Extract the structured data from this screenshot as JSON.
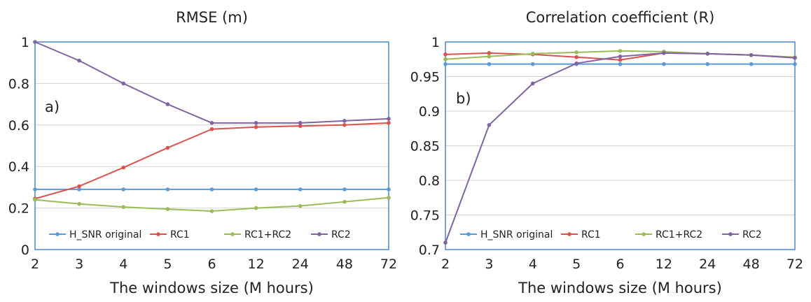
{
  "chart_data": [
    {
      "type": "line",
      "title": "RMSE (m)",
      "panel_label": "a)",
      "xlabel": "The windows size (M hours)",
      "ylabel": "",
      "categories": [
        "2",
        "3",
        "4",
        "5",
        "6",
        "12",
        "24",
        "48",
        "72"
      ],
      "yticks": [
        "0",
        "0.2",
        "0.4",
        "0.6",
        "0.8",
        "1"
      ],
      "ylim": [
        0,
        1
      ],
      "grid": true,
      "legend_position": "bottom-inside",
      "series": [
        {
          "name": "H_SNR original",
          "color": "#5b9bd5",
          "values": [
            0.29,
            0.29,
            0.29,
            0.29,
            0.29,
            0.29,
            0.29,
            0.29,
            0.29
          ]
        },
        {
          "name": "RC1",
          "color": "#d9534f",
          "values": [
            0.245,
            0.305,
            0.395,
            0.49,
            0.58,
            0.59,
            0.595,
            0.6,
            0.61
          ]
        },
        {
          "name": "RC1+RC2",
          "color": "#9bbb59",
          "values": [
            0.24,
            0.22,
            0.205,
            0.195,
            0.185,
            0.2,
            0.21,
            0.23,
            0.25
          ]
        },
        {
          "name": "RC2",
          "color": "#8064a2",
          "values": [
            1.0,
            0.91,
            0.8,
            0.7,
            0.61,
            0.61,
            0.61,
            0.62,
            0.63
          ]
        }
      ]
    },
    {
      "type": "line",
      "title": "Correlation coefficient (R)",
      "panel_label": "b)",
      "xlabel": "The windows size (M hours)",
      "ylabel": "",
      "categories": [
        "2",
        "3",
        "4",
        "5",
        "6",
        "12",
        "24",
        "48",
        "72"
      ],
      "yticks": [
        "0.7",
        "0.75",
        "0.8",
        "0.85",
        "0.9",
        "0.95",
        "1"
      ],
      "ylim": [
        0.7,
        1
      ],
      "grid": true,
      "legend_position": "bottom-inside",
      "series": [
        {
          "name": "H_SNR original",
          "color": "#5b9bd5",
          "values": [
            0.968,
            0.968,
            0.968,
            0.968,
            0.968,
            0.968,
            0.968,
            0.968,
            0.968
          ]
        },
        {
          "name": "RC1",
          "color": "#d9534f",
          "values": [
            0.982,
            0.984,
            0.982,
            0.978,
            0.974,
            0.984,
            0.983,
            0.981,
            0.977
          ]
        },
        {
          "name": "RC1+RC2",
          "color": "#9bbb59",
          "values": [
            0.975,
            0.979,
            0.983,
            0.985,
            0.987,
            0.986,
            0.983,
            0.981,
            0.978
          ]
        },
        {
          "name": "RC2",
          "color": "#8064a2",
          "values": [
            0.71,
            0.88,
            0.94,
            0.969,
            0.979,
            0.984,
            0.983,
            0.981,
            0.977
          ]
        }
      ]
    }
  ]
}
